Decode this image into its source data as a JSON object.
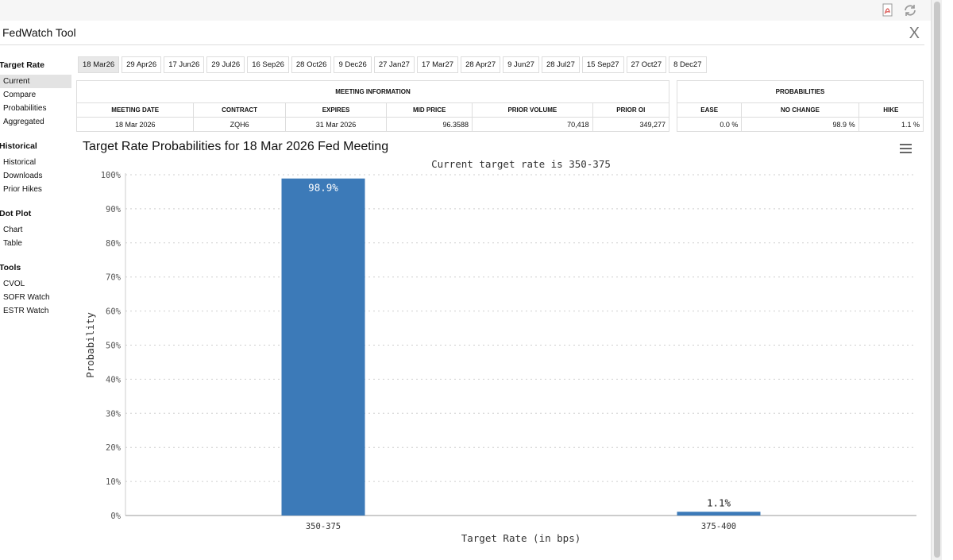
{
  "app": {
    "title": "FedWatch Tool",
    "close_glyph": "X"
  },
  "toolbar_icons": [
    "pdf-icon",
    "refresh-icon"
  ],
  "sidebar": {
    "sections": [
      {
        "title": "Target Rate",
        "items": [
          "Current",
          "Compare",
          "Probabilities",
          "Aggregated"
        ]
      },
      {
        "title": "Historical",
        "items": [
          "Historical",
          "Downloads",
          "Prior Hikes"
        ]
      },
      {
        "title": "Dot Plot",
        "items": [
          "Chart",
          "Table"
        ]
      },
      {
        "title": "Tools",
        "items": [
          "CVOL",
          "SOFR Watch",
          "ESTR Watch"
        ]
      }
    ]
  },
  "tabs": [
    "18 Mar26",
    "29 Apr26",
    "17 Jun26",
    "29 Jul26",
    "16 Sep26",
    "28 Oct26",
    "9 Dec26",
    "27 Jan27",
    "17 Mar27",
    "28 Apr27",
    "9 Jun27",
    "28 Jul27",
    "15 Sep27",
    "27 Oct27",
    "8 Dec27"
  ],
  "meeting_info": {
    "header": "MEETING INFORMATION",
    "columns": [
      "MEETING DATE",
      "CONTRACT",
      "EXPIRES",
      "MID PRICE",
      "PRIOR VOLUME",
      "PRIOR OI"
    ],
    "row": [
      "18 Mar 2026",
      "ZQH6",
      "31 Mar 2026",
      "96.3588",
      "70,418",
      "349,277"
    ]
  },
  "probabilities": {
    "header": "PROBABILITIES",
    "columns": [
      "EASE",
      "NO CHANGE",
      "HIKE"
    ],
    "row": [
      "0.0 %",
      "98.9 %",
      "1.1 %"
    ]
  },
  "chart_data": {
    "type": "bar",
    "title": "Target Rate Probabilities for 18 Mar 2026 Fed Meeting",
    "subtitle": "Current target rate is 350-375",
    "xlabel": "Target Rate (in bps)",
    "ylabel": "Probability",
    "categories": [
      "350-375",
      "375-400"
    ],
    "values": [
      98.9,
      1.1
    ],
    "data_labels": [
      "98.9%",
      "1.1%"
    ],
    "ylim": [
      0,
      100
    ],
    "yticks": [
      "0%",
      "10%",
      "20%",
      "30%",
      "40%",
      "50%",
      "60%",
      "70%",
      "80%",
      "90%",
      "100%"
    ],
    "grid": true,
    "bar_color": "#3c7ab8"
  }
}
